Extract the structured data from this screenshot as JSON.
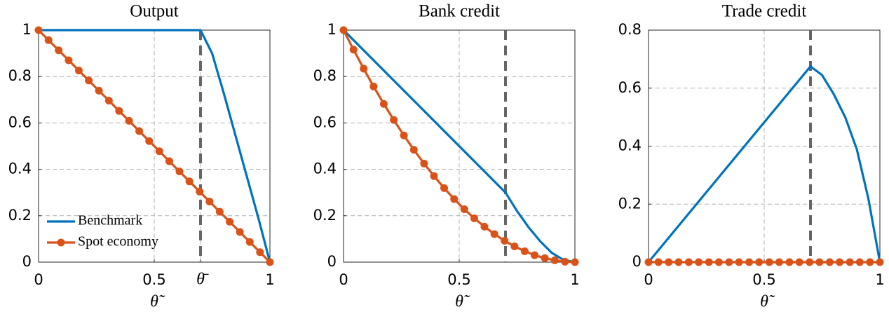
{
  "chart_data": [
    {
      "type": "line",
      "title": "Output",
      "xlabel": "θ̃",
      "xlim": [
        0,
        1
      ],
      "ylim": [
        0,
        1
      ],
      "xticks": [
        0,
        0.5,
        {
          "value": 0.7,
          "label": "θ̄"
        },
        1
      ],
      "yticks": [
        0,
        0.2,
        0.4,
        0.6,
        0.8,
        1
      ],
      "grid": true,
      "vline": 0.7,
      "legend": "lower left",
      "series": [
        {
          "name": "Benchmark",
          "color": "#0072bd",
          "marker": "none",
          "x": [
            0,
            0.7,
            0.75,
            0.8,
            0.85,
            0.9,
            0.95,
            1
          ],
          "values": [
            1,
            1,
            0.9,
            0.73,
            0.55,
            0.37,
            0.19,
            0
          ]
        },
        {
          "name": "Spot economy",
          "color": "#d95319",
          "marker": "circle",
          "x": [
            0,
            0.043,
            0.087,
            0.13,
            0.174,
            0.217,
            0.261,
            0.304,
            0.348,
            0.391,
            0.435,
            0.478,
            0.522,
            0.565,
            0.609,
            0.652,
            0.696,
            0.739,
            0.783,
            0.826,
            0.87,
            0.913,
            0.957,
            1
          ],
          "values": [
            1,
            0.957,
            0.913,
            0.87,
            0.826,
            0.783,
            0.739,
            0.696,
            0.652,
            0.609,
            0.565,
            0.522,
            0.478,
            0.435,
            0.391,
            0.348,
            0.304,
            0.261,
            0.217,
            0.174,
            0.13,
            0.087,
            0.043,
            0
          ]
        }
      ]
    },
    {
      "type": "line",
      "title": "Bank credit",
      "xlabel": "θ̃",
      "xlim": [
        0,
        1
      ],
      "ylim": [
        0,
        1
      ],
      "xticks": [
        0,
        0.5,
        1
      ],
      "yticks": [
        0,
        0.2,
        0.4,
        0.6,
        0.8,
        1
      ],
      "grid": true,
      "vline": 0.7,
      "series": [
        {
          "name": "Benchmark",
          "color": "#0072bd",
          "marker": "none",
          "x": [
            0,
            0.7,
            0.75,
            0.8,
            0.85,
            0.9,
            0.95,
            1
          ],
          "values": [
            1,
            0.3,
            0.22,
            0.15,
            0.09,
            0.04,
            0.01,
            0
          ]
        },
        {
          "name": "Spot economy",
          "color": "#d95319",
          "marker": "circle",
          "x": [
            0,
            0.043,
            0.087,
            0.13,
            0.174,
            0.217,
            0.261,
            0.304,
            0.348,
            0.391,
            0.435,
            0.478,
            0.522,
            0.565,
            0.609,
            0.652,
            0.696,
            0.739,
            0.783,
            0.826,
            0.87,
            0.913,
            0.957,
            1
          ],
          "values": [
            1,
            0.916,
            0.834,
            0.757,
            0.682,
            0.613,
            0.546,
            0.484,
            0.425,
            0.371,
            0.319,
            0.272,
            0.228,
            0.189,
            0.153,
            0.121,
            0.092,
            0.068,
            0.047,
            0.03,
            0.017,
            0.008,
            0.002,
            0
          ]
        }
      ]
    },
    {
      "type": "line",
      "title": "Trade credit",
      "xlabel": "θ̃",
      "xlim": [
        0,
        1
      ],
      "ylim": [
        0,
        0.8
      ],
      "xticks": [
        0,
        0.5,
        1
      ],
      "yticks": [
        0,
        0.2,
        0.4,
        0.6,
        0.8
      ],
      "grid": true,
      "vline": 0.7,
      "series": [
        {
          "name": "Benchmark",
          "color": "#0072bd",
          "marker": "none",
          "x": [
            0,
            0.7,
            0.75,
            0.8,
            0.85,
            0.9,
            0.95,
            1
          ],
          "values": [
            0,
            0.675,
            0.645,
            0.58,
            0.5,
            0.39,
            0.22,
            0
          ]
        },
        {
          "name": "Spot economy",
          "color": "#d95319",
          "marker": "circle",
          "x": [
            0,
            0.043,
            0.087,
            0.13,
            0.174,
            0.217,
            0.261,
            0.304,
            0.348,
            0.391,
            0.435,
            0.478,
            0.522,
            0.565,
            0.609,
            0.652,
            0.696,
            0.739,
            0.783,
            0.826,
            0.87,
            0.913,
            0.957,
            1
          ],
          "values": [
            0,
            0,
            0,
            0,
            0,
            0,
            0,
            0,
            0,
            0,
            0,
            0,
            0,
            0,
            0,
            0,
            0,
            0,
            0,
            0,
            0,
            0,
            0,
            0
          ]
        }
      ]
    }
  ]
}
